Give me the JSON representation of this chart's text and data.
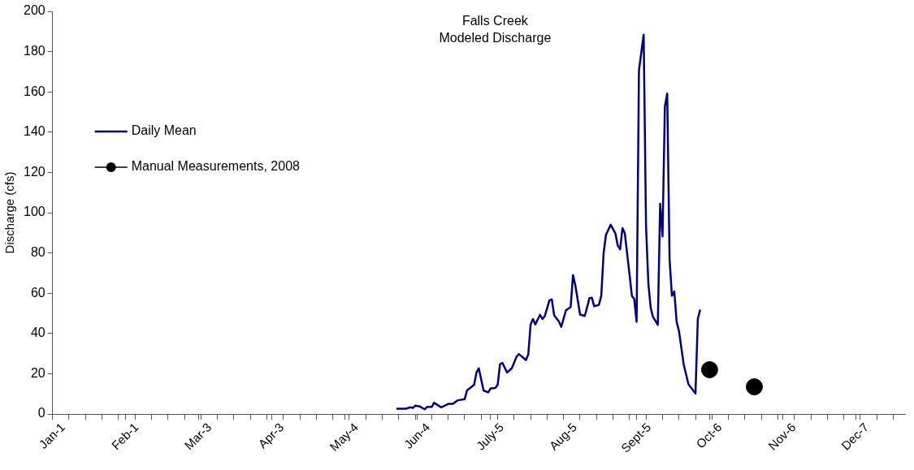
{
  "chart_data": {
    "type": "line",
    "title": "Falls Creek\nModeled Discharge",
    "ylabel": "Discharge (cfs)",
    "xlim": [
      "2008-01-01",
      "2008-12-28"
    ],
    "xticks": [
      {
        "value": "2008-01-01",
        "label": "Jan-1"
      },
      {
        "value": "2008-01-08",
        "label": null
      },
      {
        "value": "2008-01-15",
        "label": null
      },
      {
        "value": "2008-01-22",
        "label": null
      },
      {
        "value": "2008-01-29",
        "label": null
      },
      {
        "value": "2008-02-01",
        "label": "Feb-1"
      },
      {
        "value": "2008-02-05",
        "label": null
      },
      {
        "value": "2008-02-12",
        "label": null
      },
      {
        "value": "2008-02-19",
        "label": null
      },
      {
        "value": "2008-02-26",
        "label": null
      },
      {
        "value": "2008-03-03",
        "label": "Mar-3"
      },
      {
        "value": "2008-03-04",
        "label": null
      },
      {
        "value": "2008-03-11",
        "label": null
      },
      {
        "value": "2008-03-18",
        "label": null
      },
      {
        "value": "2008-03-25",
        "label": null
      },
      {
        "value": "2008-04-01",
        "label": null
      },
      {
        "value": "2008-04-03",
        "label": "Apr-3"
      },
      {
        "value": "2008-04-08",
        "label": null
      },
      {
        "value": "2008-04-15",
        "label": null
      },
      {
        "value": "2008-04-22",
        "label": null
      },
      {
        "value": "2008-04-29",
        "label": null
      },
      {
        "value": "2008-05-04",
        "label": "May-4"
      },
      {
        "value": "2008-05-06",
        "label": null
      },
      {
        "value": "2008-05-13",
        "label": null
      },
      {
        "value": "2008-05-20",
        "label": null
      },
      {
        "value": "2008-05-27",
        "label": null
      },
      {
        "value": "2008-06-03",
        "label": null
      },
      {
        "value": "2008-06-04",
        "label": "Jun-4"
      },
      {
        "value": "2008-06-10",
        "label": null
      },
      {
        "value": "2008-06-17",
        "label": null
      },
      {
        "value": "2008-06-24",
        "label": null
      },
      {
        "value": "2008-07-01",
        "label": null
      },
      {
        "value": "2008-07-05",
        "label": "July-5"
      },
      {
        "value": "2008-07-08",
        "label": null
      },
      {
        "value": "2008-07-15",
        "label": null
      },
      {
        "value": "2008-07-22",
        "label": null
      },
      {
        "value": "2008-07-29",
        "label": null
      },
      {
        "value": "2008-08-05",
        "label": "Aug-5"
      },
      {
        "value": "2008-08-12",
        "label": null
      },
      {
        "value": "2008-08-19",
        "label": null
      },
      {
        "value": "2008-08-26",
        "label": null
      },
      {
        "value": "2008-09-02",
        "label": null
      },
      {
        "value": "2008-09-05",
        "label": "Sept-5"
      },
      {
        "value": "2008-09-09",
        "label": null
      },
      {
        "value": "2008-09-16",
        "label": null
      },
      {
        "value": "2008-09-23",
        "label": null
      },
      {
        "value": "2008-09-30",
        "label": null
      },
      {
        "value": "2008-10-06",
        "label": "Oct-6"
      },
      {
        "value": "2008-10-07",
        "label": null
      },
      {
        "value": "2008-10-14",
        "label": null
      },
      {
        "value": "2008-10-21",
        "label": null
      },
      {
        "value": "2008-10-28",
        "label": null
      },
      {
        "value": "2008-11-04",
        "label": null
      },
      {
        "value": "2008-11-06",
        "label": "Nov-6"
      },
      {
        "value": "2008-11-11",
        "label": null
      },
      {
        "value": "2008-11-18",
        "label": null
      },
      {
        "value": "2008-11-25",
        "label": null
      },
      {
        "value": "2008-12-02",
        "label": null
      },
      {
        "value": "2008-12-07",
        "label": "Dec-7"
      },
      {
        "value": "2008-12-09",
        "label": null
      },
      {
        "value": "2008-12-16",
        "label": null
      },
      {
        "value": "2008-12-23",
        "label": null
      }
    ],
    "ylim": [
      0,
      200
    ],
    "yticks": [
      0,
      20,
      40,
      60,
      80,
      100,
      120,
      140,
      160,
      180,
      200
    ],
    "grid": false,
    "legend": "top left",
    "line_style": "solid",
    "series": [
      {
        "name": "Daily Mean",
        "color": "#000080",
        "marker": "none",
        "x": [
          "2008-05-26",
          "2008-05-30",
          "2008-06-01",
          "2008-06-02",
          "2008-06-03",
          "2008-06-05",
          "2008-06-07",
          "2008-06-08",
          "2008-06-10",
          "2008-06-11",
          "2008-06-14",
          "2008-06-17",
          "2008-06-19",
          "2008-06-21",
          "2008-06-24",
          "2008-06-25",
          "2008-06-28",
          "2008-06-29",
          "2008-06-30",
          "2008-07-02",
          "2008-07-04",
          "2008-07-05",
          "2008-07-07",
          "2008-07-08",
          "2008-07-09",
          "2008-07-10",
          "2008-07-12",
          "2008-07-14",
          "2008-07-16",
          "2008-07-17",
          "2008-07-20",
          "2008-07-21",
          "2008-07-22",
          "2008-07-23",
          "2008-07-24",
          "2008-07-26",
          "2008-07-27",
          "2008-07-28",
          "2008-07-30",
          "2008-07-31",
          "2008-08-01",
          "2008-08-03",
          "2008-08-04",
          "2008-08-06",
          "2008-08-08",
          "2008-08-09",
          "2008-08-10",
          "2008-08-12",
          "2008-08-14",
          "2008-08-16",
          "2008-08-17",
          "2008-08-18",
          "2008-08-20",
          "2008-08-21",
          "2008-08-22",
          "2008-08-23",
          "2008-08-25",
          "2008-08-27",
          "2008-08-28",
          "2008-08-29",
          "2008-08-30",
          "2008-08-31",
          "2008-09-02",
          "2008-09-03",
          "2008-09-04",
          "2008-09-05",
          "2008-09-06",
          "2008-09-08",
          "2008-09-09",
          "2008-09-10",
          "2008-09-11",
          "2008-09-12",
          "2008-09-14",
          "2008-09-15",
          "2008-09-16",
          "2008-09-17",
          "2008-09-18",
          "2008-09-19",
          "2008-09-20",
          "2008-09-21",
          "2008-09-22",
          "2008-09-23",
          "2008-09-25",
          "2008-09-27",
          "2008-09-30",
          "2008-10-01",
          "2008-10-02"
        ],
        "values": [
          2.6,
          2.6,
          3.3,
          3,
          4.1,
          3.7,
          2.3,
          3.5,
          3.5,
          5.6,
          3.3,
          5,
          5,
          6.8,
          7.4,
          11.7,
          14.5,
          20.6,
          22.7,
          11.7,
          10.7,
          12.7,
          12.9,
          14.5,
          24.7,
          25.4,
          20.6,
          22.7,
          28.4,
          29.8,
          26.8,
          29.5,
          44.5,
          47.2,
          44.5,
          49.3,
          47.2,
          48.6,
          56.5,
          56.9,
          49,
          46,
          43.3,
          51.5,
          53.1,
          69,
          63.8,
          49.4,
          48.7,
          57.6,
          57.8,
          53.5,
          54.2,
          58.7,
          80,
          89,
          94,
          89.7,
          83.7,
          81.8,
          92.3,
          89.7,
          69.3,
          58.7,
          57.2,
          45.8,
          170.7,
          188.4,
          93.5,
          64.7,
          52.6,
          48.1,
          44.3,
          104.4,
          88.2,
          152.6,
          159.2,
          76.8,
          58.7,
          60.9,
          45.8,
          41.2,
          24.6,
          14.8,
          10.2,
          47.3,
          51.8
        ]
      },
      {
        "name": "Manual Measurements, 2008",
        "type": "scatter",
        "color": "#000000",
        "marker": "circle",
        "x": [
          "2008-10-06",
          "2008-10-25"
        ],
        "values": [
          22,
          13.5
        ]
      }
    ]
  }
}
